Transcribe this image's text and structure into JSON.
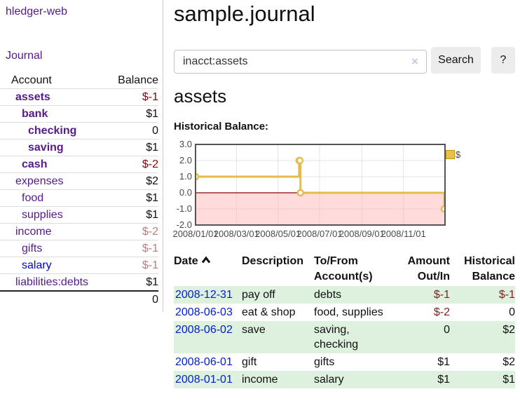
{
  "app": {
    "title": "hledger-web"
  },
  "sidebar": {
    "nav": {
      "journal": "Journal"
    },
    "table": {
      "account_header": "Account",
      "balance_header": "Balance"
    },
    "accounts": [
      {
        "name": "assets",
        "depth": 1,
        "balance": "$-1",
        "bold": true,
        "negative": true,
        "link_blue": false
      },
      {
        "name": "bank",
        "depth": 2,
        "balance": "$1",
        "bold": true,
        "negative": false,
        "link_blue": false
      },
      {
        "name": "checking",
        "depth": 3,
        "balance": "0",
        "bold": true,
        "negative": false,
        "link_blue": false
      },
      {
        "name": "saving",
        "depth": 3,
        "balance": "$1",
        "bold": true,
        "negative": false,
        "link_blue": false
      },
      {
        "name": "cash",
        "depth": 2,
        "balance": "$-2",
        "bold": true,
        "negative": true,
        "link_blue": false
      },
      {
        "name": "expenses",
        "depth": 1,
        "balance": "$2",
        "bold": false,
        "negative": false,
        "link_blue": false
      },
      {
        "name": "food",
        "depth": 2,
        "balance": "$1",
        "bold": false,
        "negative": false,
        "link_blue": false
      },
      {
        "name": "supplies",
        "depth": 2,
        "balance": "$1",
        "bold": false,
        "negative": false,
        "link_blue": false
      },
      {
        "name": "income",
        "depth": 1,
        "balance": "$-2",
        "bold": false,
        "negative": true,
        "link_blue": false
      },
      {
        "name": "gifts",
        "depth": 2,
        "balance": "$-1",
        "bold": false,
        "negative": true,
        "link_blue": false
      },
      {
        "name": "salary",
        "depth": 2,
        "balance": "$-1",
        "bold": false,
        "negative": true,
        "link_blue": true
      },
      {
        "name": "liabilities:debts",
        "depth": 1,
        "balance": "$1",
        "bold": false,
        "negative": false,
        "link_blue": false
      }
    ],
    "total": "0"
  },
  "main": {
    "title": "sample.journal",
    "search": {
      "value": "inacct:assets",
      "clear_icon": "×",
      "button": "Search",
      "help_button": "?"
    },
    "account_heading": "assets",
    "chart_heading": "Historical Balance:"
  },
  "chart_data": {
    "type": "line",
    "title": "Historical Balance:",
    "step": true,
    "series": [
      {
        "name": "$",
        "color": "#e6bc49",
        "points": [
          [
            "2008-01-01",
            1
          ],
          [
            "2008-06-01",
            2
          ],
          [
            "2008-06-02",
            2
          ],
          [
            "2008-06-03",
            0
          ],
          [
            "2008-12-31",
            -1
          ]
        ]
      }
    ],
    "x_range": [
      "2008-01-01",
      "2009-01-01"
    ],
    "ylim": [
      -2,
      3
    ],
    "y_ticks": [
      "3.0",
      "2.0",
      "1.0",
      "0.0",
      "-1.0",
      "-2.0"
    ],
    "x_ticks": [
      "2008/01/01",
      "2008/03/01",
      "2008/05/01",
      "2008/07/01",
      "2008/09/01",
      "2008/11/01"
    ],
    "grid": true,
    "legend": "$",
    "legend_position": "top-right",
    "negative_fill": "rgba(255,175,175,0.45)",
    "zero_line_color": "#870000",
    "border_color": "#545454",
    "grid_color": "#e3e3e3"
  },
  "register": {
    "headers": {
      "date": "Date",
      "description": "Description",
      "accounts": "To/From Account(s)",
      "amount": "Amount Out/In",
      "balance": "Historical Balance"
    },
    "rows": [
      {
        "date": "2008-12-31",
        "description": "pay off",
        "accounts": "debts",
        "amount": "$-1",
        "amount_negative": true,
        "balance": "$-1",
        "balance_negative": true
      },
      {
        "date": "2008-06-03",
        "description": "eat & shop",
        "accounts": "food, supplies",
        "amount": "$-2",
        "amount_negative": true,
        "balance": "0",
        "balance_negative": false
      },
      {
        "date": "2008-06-02",
        "description": "save",
        "accounts": "saving, checking",
        "amount": "0",
        "amount_negative": false,
        "balance": "$2",
        "balance_negative": false
      },
      {
        "date": "2008-06-01",
        "description": "gift",
        "accounts": "gifts",
        "amount": "$1",
        "amount_negative": false,
        "balance": "$2",
        "balance_negative": false
      },
      {
        "date": "2008-01-01",
        "description": "income",
        "accounts": "salary",
        "amount": "$1",
        "amount_negative": false,
        "balance": "$1",
        "balance_negative": false
      }
    ]
  }
}
